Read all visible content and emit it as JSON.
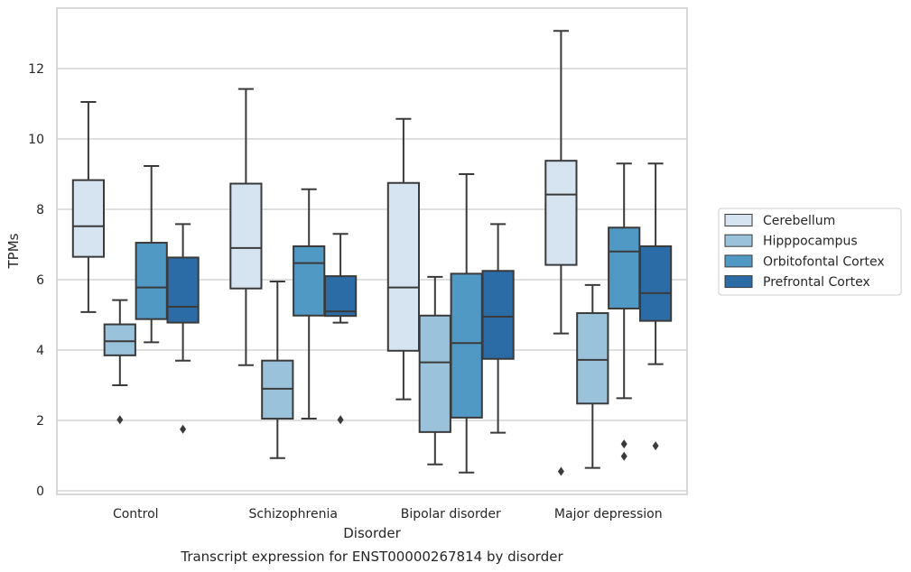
{
  "chart_data": {
    "type": "box",
    "title": "",
    "caption": "Transcript expression for ENST00000267814 by disorder",
    "xlabel": "Disorder",
    "ylabel": "TPMs",
    "ylim": [
      -0.1,
      13.7
    ],
    "yticks": [
      0,
      2,
      4,
      6,
      8,
      10,
      12
    ],
    "grid": "horizontal",
    "legend_position": "right",
    "categories": [
      "Control",
      "Schizophrenia",
      "Bipolar disorder",
      "Major depression"
    ],
    "series": [
      {
        "name": "Cerebellum",
        "color": "#d6e3f1",
        "boxes": [
          {
            "whislo": 5.08,
            "q1": 6.65,
            "med": 7.52,
            "q3": 8.83,
            "whishi": 11.05,
            "fliers": []
          },
          {
            "whislo": 3.57,
            "q1": 5.75,
            "med": 6.9,
            "q3": 8.73,
            "whishi": 11.42,
            "fliers": []
          },
          {
            "whislo": 2.6,
            "q1": 3.98,
            "med": 5.78,
            "q3": 8.75,
            "whishi": 10.57,
            "fliers": []
          },
          {
            "whislo": 4.47,
            "q1": 6.42,
            "med": 8.42,
            "q3": 9.38,
            "whishi": 13.07,
            "fliers": [
              0.55
            ]
          }
        ]
      },
      {
        "name": "Hipppocampus",
        "color": "#9ac3db",
        "boxes": [
          {
            "whislo": 3.0,
            "q1": 3.85,
            "med": 4.25,
            "q3": 4.73,
            "whishi": 5.42,
            "fliers": [
              2.02
            ]
          },
          {
            "whislo": 0.93,
            "q1": 2.05,
            "med": 2.9,
            "q3": 3.7,
            "whishi": 5.95,
            "fliers": []
          },
          {
            "whislo": 0.75,
            "q1": 1.67,
            "med": 3.65,
            "q3": 4.98,
            "whishi": 6.08,
            "fliers": []
          },
          {
            "whislo": 0.65,
            "q1": 2.48,
            "med": 3.72,
            "q3": 5.05,
            "whishi": 5.85,
            "fliers": []
          }
        ]
      },
      {
        "name": "Orbitofontal Cortex",
        "color": "#5199c5",
        "boxes": [
          {
            "whislo": 4.22,
            "q1": 4.88,
            "med": 5.78,
            "q3": 7.05,
            "whishi": 9.23,
            "fliers": []
          },
          {
            "whislo": 2.05,
            "q1": 4.98,
            "med": 6.47,
            "q3": 6.95,
            "whishi": 8.57,
            "fliers": []
          },
          {
            "whislo": 0.52,
            "q1": 2.08,
            "med": 4.2,
            "q3": 6.17,
            "whishi": 9.0,
            "fliers": []
          },
          {
            "whislo": 2.63,
            "q1": 5.18,
            "med": 6.8,
            "q3": 7.48,
            "whishi": 9.3,
            "fliers": [
              1.33,
              0.98
            ]
          }
        ]
      },
      {
        "name": "Prefrontal Cortex",
        "color": "#2b6ba6",
        "boxes": [
          {
            "whislo": 3.7,
            "q1": 4.78,
            "med": 5.23,
            "q3": 6.63,
            "whishi": 7.58,
            "fliers": [
              1.75
            ]
          },
          {
            "whislo": 4.78,
            "q1": 4.97,
            "med": 5.1,
            "q3": 6.1,
            "whishi": 7.3,
            "fliers": [
              2.02
            ]
          },
          {
            "whislo": 1.65,
            "q1": 3.75,
            "med": 4.95,
            "q3": 6.25,
            "whishi": 7.58,
            "fliers": []
          },
          {
            "whislo": 3.6,
            "q1": 4.83,
            "med": 5.62,
            "q3": 6.95,
            "whishi": 9.3,
            "fliers": [
              1.28
            ]
          }
        ]
      }
    ]
  }
}
